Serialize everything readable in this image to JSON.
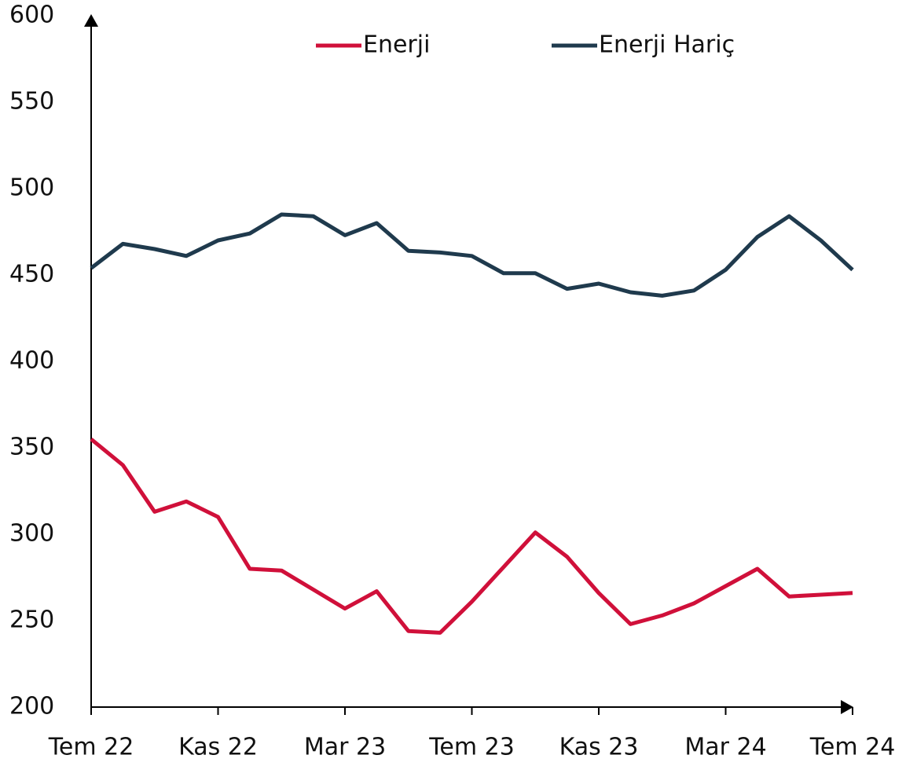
{
  "chart_data": {
    "type": "line",
    "categories": [
      "Tem 22",
      null,
      null,
      null,
      "Kas 22",
      null,
      null,
      null,
      "Mar 23",
      null,
      null,
      null,
      "Tem 23",
      null,
      null,
      null,
      "Kas 23",
      null,
      null,
      null,
      "Mar 24",
      null,
      null,
      null,
      "Tem 24"
    ],
    "series": [
      {
        "name": "Enerji",
        "color": "#d0103a",
        "values": [
          355,
          340,
          313,
          319,
          310,
          280,
          279,
          268,
          257,
          267,
          244,
          243,
          261,
          281,
          301,
          287,
          266,
          248,
          253,
          260,
          270,
          280,
          264,
          265,
          266
        ]
      },
      {
        "name": "Enerji Hariç",
        "color": "#1f3a4d",
        "values": [
          454,
          468,
          465,
          461,
          470,
          474,
          485,
          484,
          473,
          480,
          464,
          463,
          461,
          451,
          451,
          442,
          445,
          440,
          438,
          441,
          453,
          472,
          484,
          470,
          453
        ]
      }
    ],
    "ylim": [
      200,
      600
    ],
    "yticks": [
      200,
      250,
      300,
      350,
      400,
      450,
      500,
      550,
      600
    ],
    "grid": false,
    "legend": "top"
  }
}
